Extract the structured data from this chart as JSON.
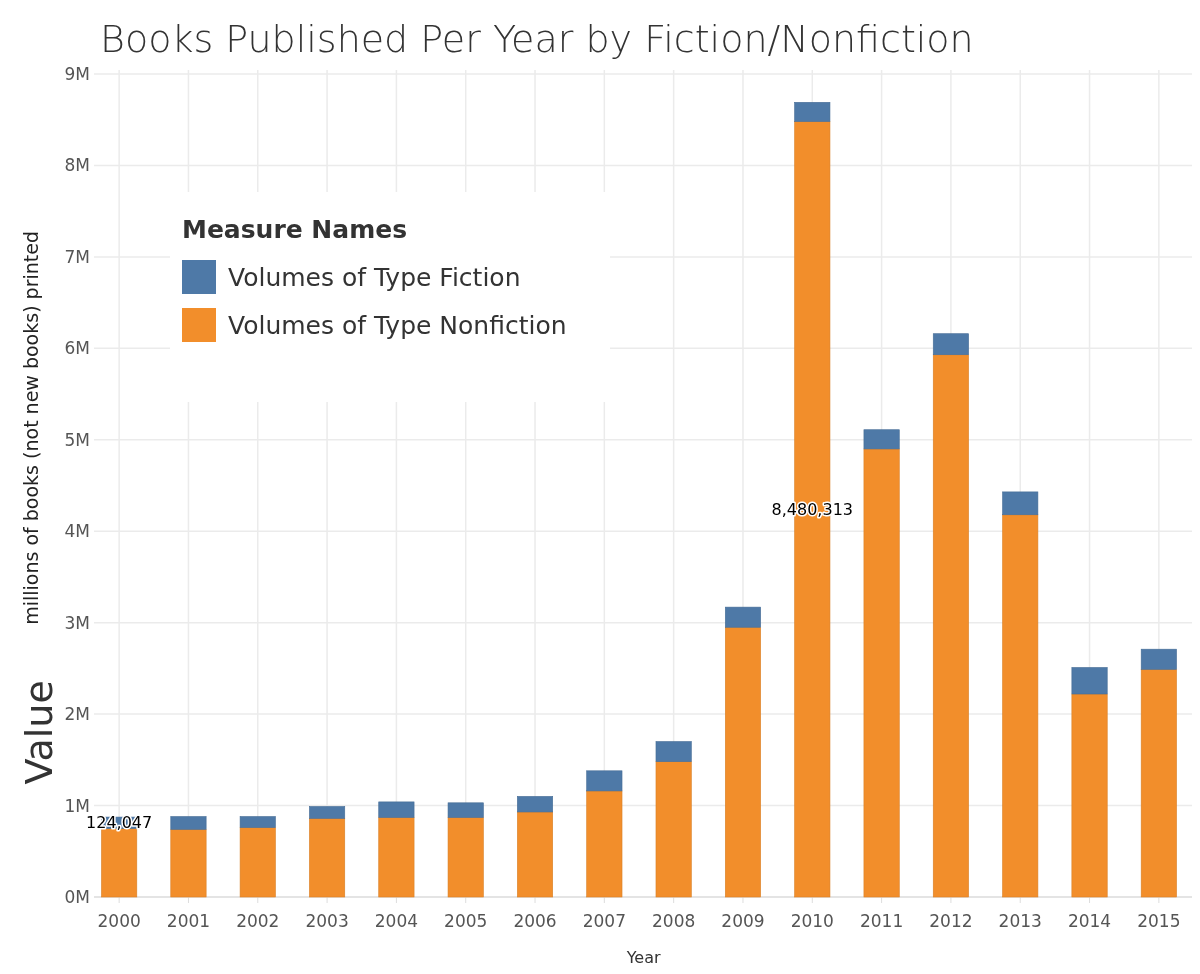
{
  "chart_data": {
    "type": "bar",
    "title": "Books Published Per Year by Fiction/Nonfiction",
    "xlabel": "Year",
    "ylabel": "Value",
    "annotations": [
      "millions of books (not new books) printed"
    ],
    "categories": [
      "2000",
      "2001",
      "2002",
      "2003",
      "2004",
      "2005",
      "2006",
      "2007",
      "2008",
      "2009",
      "2010",
      "2011",
      "2012",
      "2013",
      "2014",
      "2015"
    ],
    "stacked": true,
    "legend": "top left",
    "legend_title": "Measure Names",
    "grid": true,
    "ylim": [
      0,
      9000000
    ],
    "yticks": [
      {
        "value": 0,
        "label": "0M"
      },
      {
        "value": 1000000,
        "label": "1M"
      },
      {
        "value": 2000000,
        "label": "2M"
      },
      {
        "value": 3000000,
        "label": "3M"
      },
      {
        "value": 4000000,
        "label": "4M"
      },
      {
        "value": 5000000,
        "label": "5M"
      },
      {
        "value": 6000000,
        "label": "6M"
      },
      {
        "value": 7000000,
        "label": "7M"
      },
      {
        "value": 8000000,
        "label": "8M"
      },
      {
        "value": 9000000,
        "label": "9M"
      }
    ],
    "series": [
      {
        "name": "Volumes of Type Nonfiction",
        "color": "#f28e2b",
        "values": [
          750000,
          740000,
          760000,
          860000,
          870000,
          870000,
          930000,
          1160000,
          1480000,
          2950000,
          8480313,
          4900000,
          5930000,
          4180000,
          2220000,
          2490000
        ],
        "value_labels": [
          null,
          null,
          null,
          null,
          null,
          null,
          null,
          null,
          null,
          null,
          "8,480,313",
          null,
          null,
          null,
          null,
          null
        ]
      },
      {
        "name": "Volumes of Type Fiction",
        "color": "#4e79a7",
        "values": [
          124047,
          140000,
          120000,
          130000,
          170000,
          160000,
          170000,
          220000,
          220000,
          220000,
          210000,
          210000,
          230000,
          250000,
          290000,
          220000
        ],
        "value_labels": [
          "124,047",
          null,
          null,
          null,
          null,
          null,
          null,
          null,
          null,
          null,
          null,
          null,
          null,
          null,
          null,
          null
        ]
      }
    ]
  }
}
